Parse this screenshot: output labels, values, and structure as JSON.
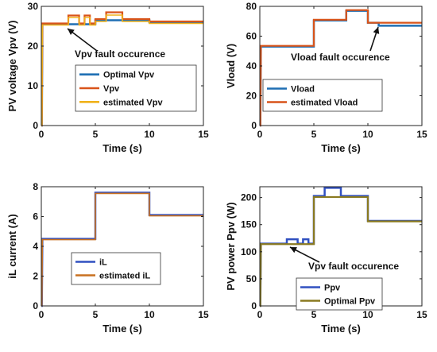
{
  "chart_data": [
    {
      "type": "line",
      "xlabel": "Time (s)",
      "ylabel": "PV voltage Vpv (V)",
      "xlim": [
        0,
        15
      ],
      "ylim": [
        0,
        30
      ],
      "xticks": [
        "0",
        "5",
        "10",
        "15"
      ],
      "yticks": [
        "0",
        "10",
        "20",
        "30"
      ],
      "grid": false,
      "legend_position": "center-right",
      "annotation": "Vpv fault occurence",
      "series": [
        {
          "name": "Optimal Vpv",
          "color": "#1f6fb4",
          "width": 2.5,
          "points": [
            [
              0,
              0
            ],
            [
              0.05,
              0
            ],
            [
              0.1,
              25.5
            ],
            [
              5,
              25.5
            ],
            [
              5,
              26.5
            ],
            [
              10,
              26.5
            ],
            [
              10,
              26
            ],
            [
              15,
              26
            ]
          ]
        },
        {
          "name": "Vpv",
          "color": "#d9541a",
          "width": 2.2,
          "points": [
            [
              0,
              0
            ],
            [
              0.05,
              0
            ],
            [
              0.1,
              25.7
            ],
            [
              2.5,
              25.7
            ],
            [
              2.5,
              27.7
            ],
            [
              3.5,
              27.7
            ],
            [
              3.5,
              25.7
            ],
            [
              4,
              25.7
            ],
            [
              4,
              27.7
            ],
            [
              4.5,
              27.7
            ],
            [
              4.5,
              25.7
            ],
            [
              5,
              25.7
            ],
            [
              5,
              26.8
            ],
            [
              6,
              26.8
            ],
            [
              6,
              28.5
            ],
            [
              7.5,
              28.5
            ],
            [
              7.5,
              26.8
            ],
            [
              10,
              26.8
            ],
            [
              10,
              26.2
            ],
            [
              15,
              26.2
            ]
          ]
        },
        {
          "name": "estimated Vpv",
          "color": "#f0b21a",
          "width": 1.6,
          "points": [
            [
              0,
              0
            ],
            [
              0.05,
              0
            ],
            [
              0.1,
              25.3
            ],
            [
              2.5,
              25.3
            ],
            [
              2.5,
              27.2
            ],
            [
              3.5,
              27.2
            ],
            [
              3.5,
              25.3
            ],
            [
              4,
              25.3
            ],
            [
              4,
              27.2
            ],
            [
              4.5,
              27.2
            ],
            [
              4.5,
              25.3
            ],
            [
              5,
              25.3
            ],
            [
              5,
              26.2
            ],
            [
              6,
              26.2
            ],
            [
              6,
              27.8
            ],
            [
              7.5,
              27.8
            ],
            [
              7.5,
              26.2
            ],
            [
              10,
              26.2
            ],
            [
              10,
              25.7
            ],
            [
              15,
              25.7
            ]
          ]
        }
      ]
    },
    {
      "type": "line",
      "xlabel": "Time (s)",
      "ylabel": "Vload (V)",
      "xlim": [
        0,
        15
      ],
      "ylim": [
        0,
        80
      ],
      "xticks": [
        "0",
        "5",
        "10",
        "15"
      ],
      "yticks": [
        "0",
        "20",
        "40",
        "60",
        "80"
      ],
      "grid": false,
      "legend_position": "bottom-right",
      "annotation": "Vload fault occurence",
      "series": [
        {
          "name": "Vload",
          "color": "#1f6fb4",
          "width": 2.5,
          "points": [
            [
              0,
              0
            ],
            [
              0.05,
              0
            ],
            [
              0.1,
              53
            ],
            [
              5,
              53
            ],
            [
              5,
              70.5
            ],
            [
              8,
              70.5
            ],
            [
              8,
              77
            ],
            [
              10,
              77
            ],
            [
              10,
              69
            ],
            [
              11,
              69
            ],
            [
              11,
              67
            ],
            [
              15,
              67
            ]
          ]
        },
        {
          "name": "estimated Vload",
          "color": "#d9541a",
          "width": 2.2,
          "points": [
            [
              0,
              0
            ],
            [
              0.05,
              0
            ],
            [
              0.1,
              53.5
            ],
            [
              5,
              53.5
            ],
            [
              5,
              71
            ],
            [
              8,
              71
            ],
            [
              8,
              77.5
            ],
            [
              10,
              77.5
            ],
            [
              10,
              69
            ],
            [
              15,
              69
            ]
          ]
        }
      ]
    },
    {
      "type": "line",
      "xlabel": "Time (s)",
      "ylabel": "iL current (A)",
      "xlim": [
        0,
        15
      ],
      "ylim": [
        0,
        8
      ],
      "xticks": [
        "0",
        "5",
        "10",
        "15"
      ],
      "yticks": [
        "0",
        "2",
        "4",
        "6",
        "8"
      ],
      "grid": false,
      "legend_position": "bottom-left",
      "series": [
        {
          "name": "iL",
          "color": "#3050c0",
          "width": 2.5,
          "points": [
            [
              0,
              0
            ],
            [
              0.05,
              0
            ],
            [
              0.1,
              4.5
            ],
            [
              5,
              4.5
            ],
            [
              5,
              7.6
            ],
            [
              10,
              7.6
            ],
            [
              10,
              6.1
            ],
            [
              15,
              6.1
            ]
          ]
        },
        {
          "name": "estimated iL",
          "color": "#c87020",
          "width": 1.6,
          "points": [
            [
              0,
              0
            ],
            [
              0.05,
              0
            ],
            [
              0.1,
              4.45
            ],
            [
              5,
              4.45
            ],
            [
              5,
              7.55
            ],
            [
              10,
              7.55
            ],
            [
              10,
              6.05
            ],
            [
              15,
              6.05
            ]
          ]
        }
      ]
    },
    {
      "type": "line",
      "xlabel": "Time (s)",
      "ylabel": "PV power Ppv (W)",
      "xlim": [
        0,
        15
      ],
      "ylim": [
        0,
        220
      ],
      "xticks": [
        "0",
        "5",
        "10",
        "15"
      ],
      "yticks": [
        "0",
        "50",
        "100",
        "150",
        "200"
      ],
      "grid": false,
      "legend_position": "bottom-center",
      "annotation": "Vpv fault occurence",
      "series": [
        {
          "name": "Ppv",
          "color": "#3050c0",
          "width": 2.5,
          "points": [
            [
              0,
              0
            ],
            [
              0.05,
              0
            ],
            [
              0.1,
              115
            ],
            [
              2.5,
              115
            ],
            [
              2.5,
              123
            ],
            [
              3.5,
              123
            ],
            [
              3.5,
              115
            ],
            [
              4,
              115
            ],
            [
              4,
              123
            ],
            [
              4.5,
              123
            ],
            [
              4.5,
              115
            ],
            [
              5,
              115
            ],
            [
              5,
              203
            ],
            [
              6,
              203
            ],
            [
              6,
              218
            ],
            [
              7.5,
              218
            ],
            [
              7.5,
              203
            ],
            [
              10,
              203
            ],
            [
              10,
              157
            ],
            [
              15,
              157
            ]
          ]
        },
        {
          "name": "Optimal Ppv",
          "color": "#8a7a20",
          "width": 2.2,
          "points": [
            [
              0,
              0
            ],
            [
              0.05,
              0
            ],
            [
              0.1,
              114
            ],
            [
              5,
              114
            ],
            [
              5,
              201
            ],
            [
              10,
              201
            ],
            [
              10,
              156
            ],
            [
              15,
              156
            ]
          ]
        }
      ]
    }
  ]
}
